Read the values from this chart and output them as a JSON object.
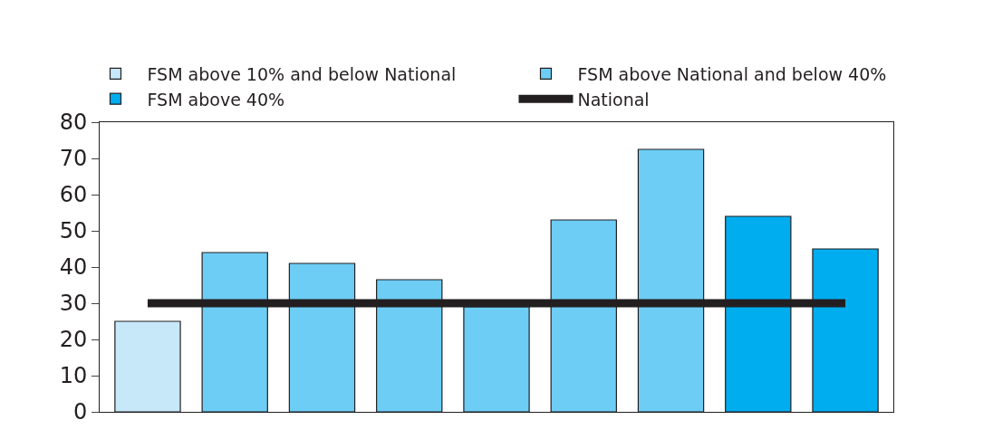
{
  "chart_data": {
    "type": "bar",
    "categories": [
      null,
      null,
      null,
      null,
      null,
      null,
      null,
      null,
      null
    ],
    "series": [
      {
        "name": "FSM above 10% and below National",
        "color": "#c7e8f8",
        "values": [
          25,
          null,
          null,
          null,
          null,
          null,
          null,
          null,
          null
        ]
      },
      {
        "name": "FSM above National and below 40%",
        "color": "#6dcdf5",
        "values": [
          null,
          44,
          41,
          36.5,
          29,
          53,
          72.5,
          null,
          null
        ]
      },
      {
        "name": "FSM above 40%",
        "color": "#00adee",
        "values": [
          null,
          null,
          null,
          null,
          null,
          null,
          null,
          54,
          45
        ]
      },
      {
        "name": "National",
        "type": "line",
        "color": "#231f20",
        "values": [
          30,
          30,
          30,
          30,
          30,
          30,
          30,
          30,
          30
        ]
      }
    ],
    "ylim": [
      0,
      80
    ],
    "yticks": [
      0,
      10,
      20,
      30,
      40,
      50,
      60,
      70,
      80
    ],
    "legend": "top",
    "marker": "none"
  }
}
